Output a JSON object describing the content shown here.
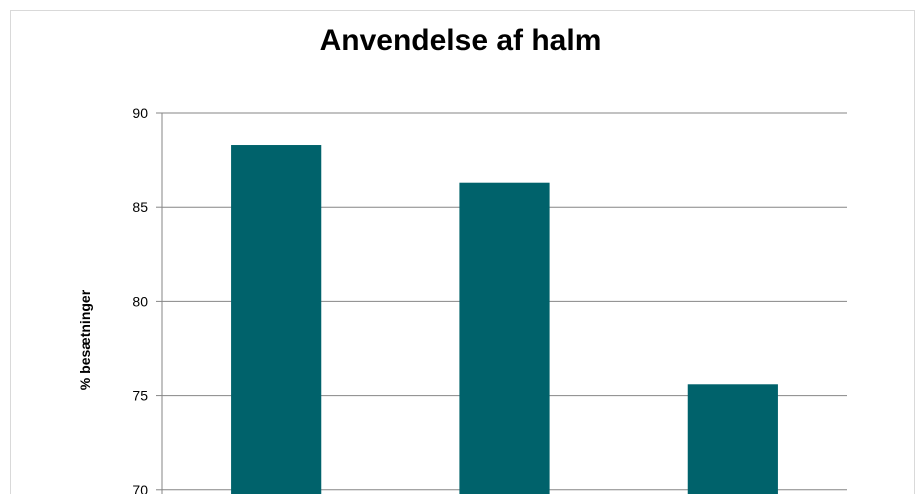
{
  "chart_data": {
    "type": "bar",
    "title": "Anvendelse af halm",
    "ylabel": "% besætninger",
    "xlabel": "",
    "categories": [
      "",
      "",
      ""
    ],
    "values": [
      88.3,
      86.3,
      75.6
    ],
    "ylim": [
      67.6,
      90
    ],
    "yticks": [
      70,
      75,
      80,
      85,
      90
    ],
    "bar_color": "#00626b",
    "grid": true,
    "legend": "none"
  }
}
